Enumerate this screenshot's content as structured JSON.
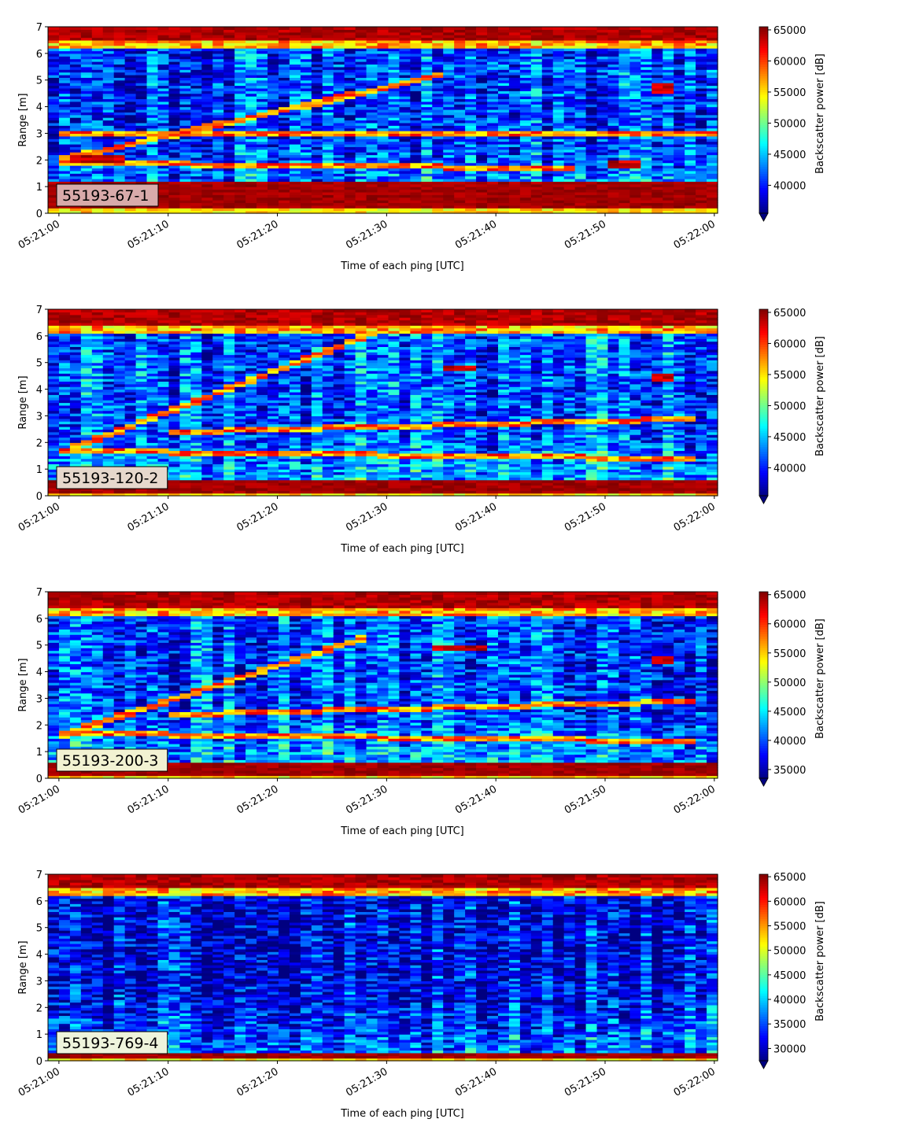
{
  "colors": {
    "cmap": "jet",
    "axis": "#000000",
    "label_box_edge": "#000000"
  },
  "chart_data": [
    {
      "type": "heatmap",
      "ylabel": "Range [m]",
      "xlabel": "Time of each ping [UTC]",
      "colorbar_label": "Backscatter power [dB]",
      "ylim": [
        0,
        7
      ],
      "yticks": [
        "0",
        "1",
        "2",
        "3",
        "4",
        "5",
        "6",
        "7"
      ],
      "xticks": [
        "05:21:00",
        "05:21:10",
        "05:21:20",
        "05:21:30",
        "05:21:40",
        "05:21:50",
        "05:22:00"
      ],
      "xlim_seconds": [
        -1,
        60.3
      ],
      "vlim": [
        35500,
        65500
      ],
      "cbar_ticks": [
        "40000",
        "45000",
        "50000",
        "55000",
        "60000",
        "65000"
      ],
      "cbar_extend_min": true,
      "panel_label": "55193-67-1",
      "label_box_color": "#d8aaaa",
      "features": {
        "bottom_band": [
          0.25,
          1.15
        ],
        "top_band": [
          6.5,
          7.0
        ],
        "background_level": 0.18,
        "rising_echo": {
          "from": [
            0,
            2.0
          ],
          "to": [
            35,
            5.2
          ]
        },
        "layers": [
          [
            0,
            1.9,
            47,
            1.7
          ],
          [
            0,
            3.0,
            60,
            3.0
          ]
        ],
        "hotspots": [
          [
            50,
            53,
            1.7,
            2.0
          ],
          [
            54,
            56,
            4.5,
            4.9
          ],
          [
            1,
            6,
            1.9,
            2.2
          ]
        ]
      }
    },
    {
      "type": "heatmap",
      "ylabel": "Range [m]",
      "xlabel": "Time of each ping [UTC]",
      "colorbar_label": "Backscatter power [dB]",
      "ylim": [
        0,
        7
      ],
      "yticks": [
        "0",
        "1",
        "2",
        "3",
        "4",
        "5",
        "6",
        "7"
      ],
      "xticks": [
        "05:21:00",
        "05:21:10",
        "05:21:20",
        "05:21:30",
        "05:21:40",
        "05:21:50",
        "05:22:00"
      ],
      "xlim_seconds": [
        -1,
        60.3
      ],
      "vlim": [
        35500,
        65500
      ],
      "cbar_ticks": [
        "40000",
        "45000",
        "50000",
        "55000",
        "60000",
        "65000"
      ],
      "cbar_extend_min": true,
      "panel_label": "55193-120-2",
      "label_box_color": "#e6d8cc",
      "features": {
        "bottom_band": [
          0.15,
          0.55
        ],
        "top_band": [
          6.4,
          7.0
        ],
        "background_level": 0.22,
        "rising_echo": {
          "from": [
            0,
            1.6
          ],
          "to": [
            30,
            6.3
          ]
        },
        "layers": [
          [
            0,
            1.7,
            58,
            1.4
          ],
          [
            10,
            2.4,
            58,
            2.9
          ]
        ],
        "hotspots": [
          [
            35,
            38,
            4.7,
            4.9
          ],
          [
            54,
            56,
            4.3,
            4.6
          ]
        ]
      }
    },
    {
      "type": "heatmap",
      "ylabel": "Range [m]",
      "xlabel": "Time of each ping [UTC]",
      "colorbar_label": "Backscatter power [dB]",
      "ylim": [
        0,
        7
      ],
      "yticks": [
        "0",
        "1",
        "2",
        "3",
        "4",
        "5",
        "6",
        "7"
      ],
      "xticks": [
        "05:21:00",
        "05:21:10",
        "05:21:20",
        "05:21:30",
        "05:21:40",
        "05:21:50",
        "05:22:00"
      ],
      "xlim_seconds": [
        -1,
        60.3
      ],
      "vlim": [
        33500,
        65500
      ],
      "cbar_ticks": [
        "35000",
        "40000",
        "45000",
        "50000",
        "55000",
        "60000",
        "65000"
      ],
      "cbar_extend_min": true,
      "panel_label": "55193-200-3",
      "label_box_color": "#f2f2d2",
      "features": {
        "bottom_band": [
          0.15,
          0.55
        ],
        "top_band": [
          6.4,
          7.0
        ],
        "background_level": 0.2,
        "rising_echo": {
          "from": [
            0,
            1.6
          ],
          "to": [
            28,
            5.3
          ]
        },
        "layers": [
          [
            0,
            1.7,
            58,
            1.4
          ],
          [
            10,
            2.4,
            58,
            2.9
          ]
        ],
        "hotspots": [
          [
            34,
            39,
            4.8,
            5.0
          ],
          [
            54,
            56,
            4.3,
            4.6
          ]
        ]
      }
    },
    {
      "type": "heatmap",
      "ylabel": "Range [m]",
      "xlabel": "Time of each ping [UTC]",
      "colorbar_label": "Backscatter power [dB]",
      "ylim": [
        0,
        7
      ],
      "yticks": [
        "0",
        "1",
        "2",
        "3",
        "4",
        "5",
        "6",
        "7"
      ],
      "xticks": [
        "05:21:00",
        "05:21:10",
        "05:21:20",
        "05:21:30",
        "05:21:40",
        "05:21:50",
        "05:22:00"
      ],
      "xlim_seconds": [
        -1,
        60.3
      ],
      "vlim": [
        27500,
        65500
      ],
      "cbar_ticks": [
        "30000",
        "35000",
        "40000",
        "45000",
        "50000",
        "55000",
        "60000",
        "65000"
      ],
      "cbar_extend_min": true,
      "panel_label": "55193-769-4",
      "label_box_color": "#eef4dc",
      "features": {
        "bottom_band": [
          0.1,
          0.3
        ],
        "top_band": [
          6.5,
          6.9
        ],
        "background_level": 0.12,
        "rising_echo": null,
        "layers": [],
        "hotspots": []
      }
    }
  ]
}
